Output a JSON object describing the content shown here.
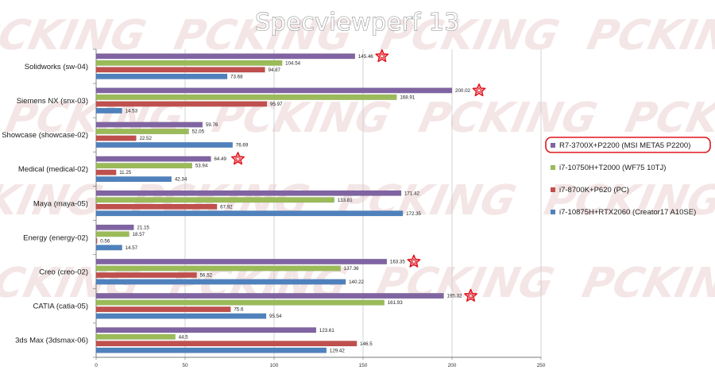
{
  "chart_data": {
    "type": "bar",
    "orientation": "horizontal",
    "title": "Specviewperf 13",
    "watermark": "PCKING",
    "categories": [
      "Solidworks (sw-04)",
      "Siemens NX (snx-03)",
      "Showcase (showcase-02)",
      "Medical (medical-02)",
      "Maya (maya-05)",
      "Energy (energy-02)",
      "Creo (creo-02)",
      "CATIA (catia-05)",
      "3ds Max (3dsmax-06)"
    ],
    "series": [
      {
        "name": "R7-3700X+P2200 (MSI META5 P2200)",
        "color": "#8064a2",
        "values": [
          145.46,
          200.02,
          59.76,
          64.49,
          171.42,
          21.15,
          163.35,
          195.32,
          123.61
        ],
        "labels": [
          "145.46",
          "200.02",
          "59.76",
          "64.49",
          "171.42",
          "21.15",
          "163.35",
          "195.32",
          "123.61"
        ]
      },
      {
        "name": "i7-10750H+T2000 (WF75 10TJ)",
        "color": "#9bbb59",
        "values": [
          104.54,
          168.91,
          52.05,
          53.94,
          133.81,
          18.57,
          137.36,
          161.93,
          44.5
        ],
        "labels": [
          "104.54",
          "168.91",
          "52.05",
          "53.94",
          "133.81",
          "18.57",
          "137.36",
          "161.93",
          "44.5"
        ]
      },
      {
        "name": "i7-8700K+P620 (PC)",
        "color": "#c0504d",
        "values": [
          94.87,
          95.97,
          22.52,
          11.25,
          67.92,
          0.56,
          56.52,
          75.6,
          146.5
        ],
        "labels": [
          "94.87",
          "95.97",
          "22.52",
          "11.25",
          "67.92",
          "0.56",
          "56.52",
          "75.6",
          "146.5"
        ]
      },
      {
        "name": "i7-10875H+RTX2060 (Creator17 A10SE)",
        "color": "#4f81bd",
        "values": [
          73.68,
          14.53,
          76.69,
          42.34,
          172.35,
          14.57,
          140.22,
          95.54,
          129.42
        ],
        "labels": [
          "73.68",
          "14.53",
          "76.69",
          "42.34",
          "172.35",
          "14.57",
          "140.22",
          "95.54",
          "129.42"
        ]
      }
    ],
    "xlim": [
      0,
      250
    ],
    "xticks": [
      "0",
      "50",
      "100",
      "150",
      "200",
      "250"
    ],
    "grid": true,
    "legend_position": "right",
    "highlighted_series": "R7-3700X+P2200 (MSI META5 P2200)",
    "star_marked_categories": [
      "Solidworks (sw-04)",
      "Siemens NX (snx-03)",
      "Medical (medical-02)",
      "Creo (creo-02)",
      "CATIA (catia-05)"
    ],
    "star_color": "#e0161f"
  }
}
